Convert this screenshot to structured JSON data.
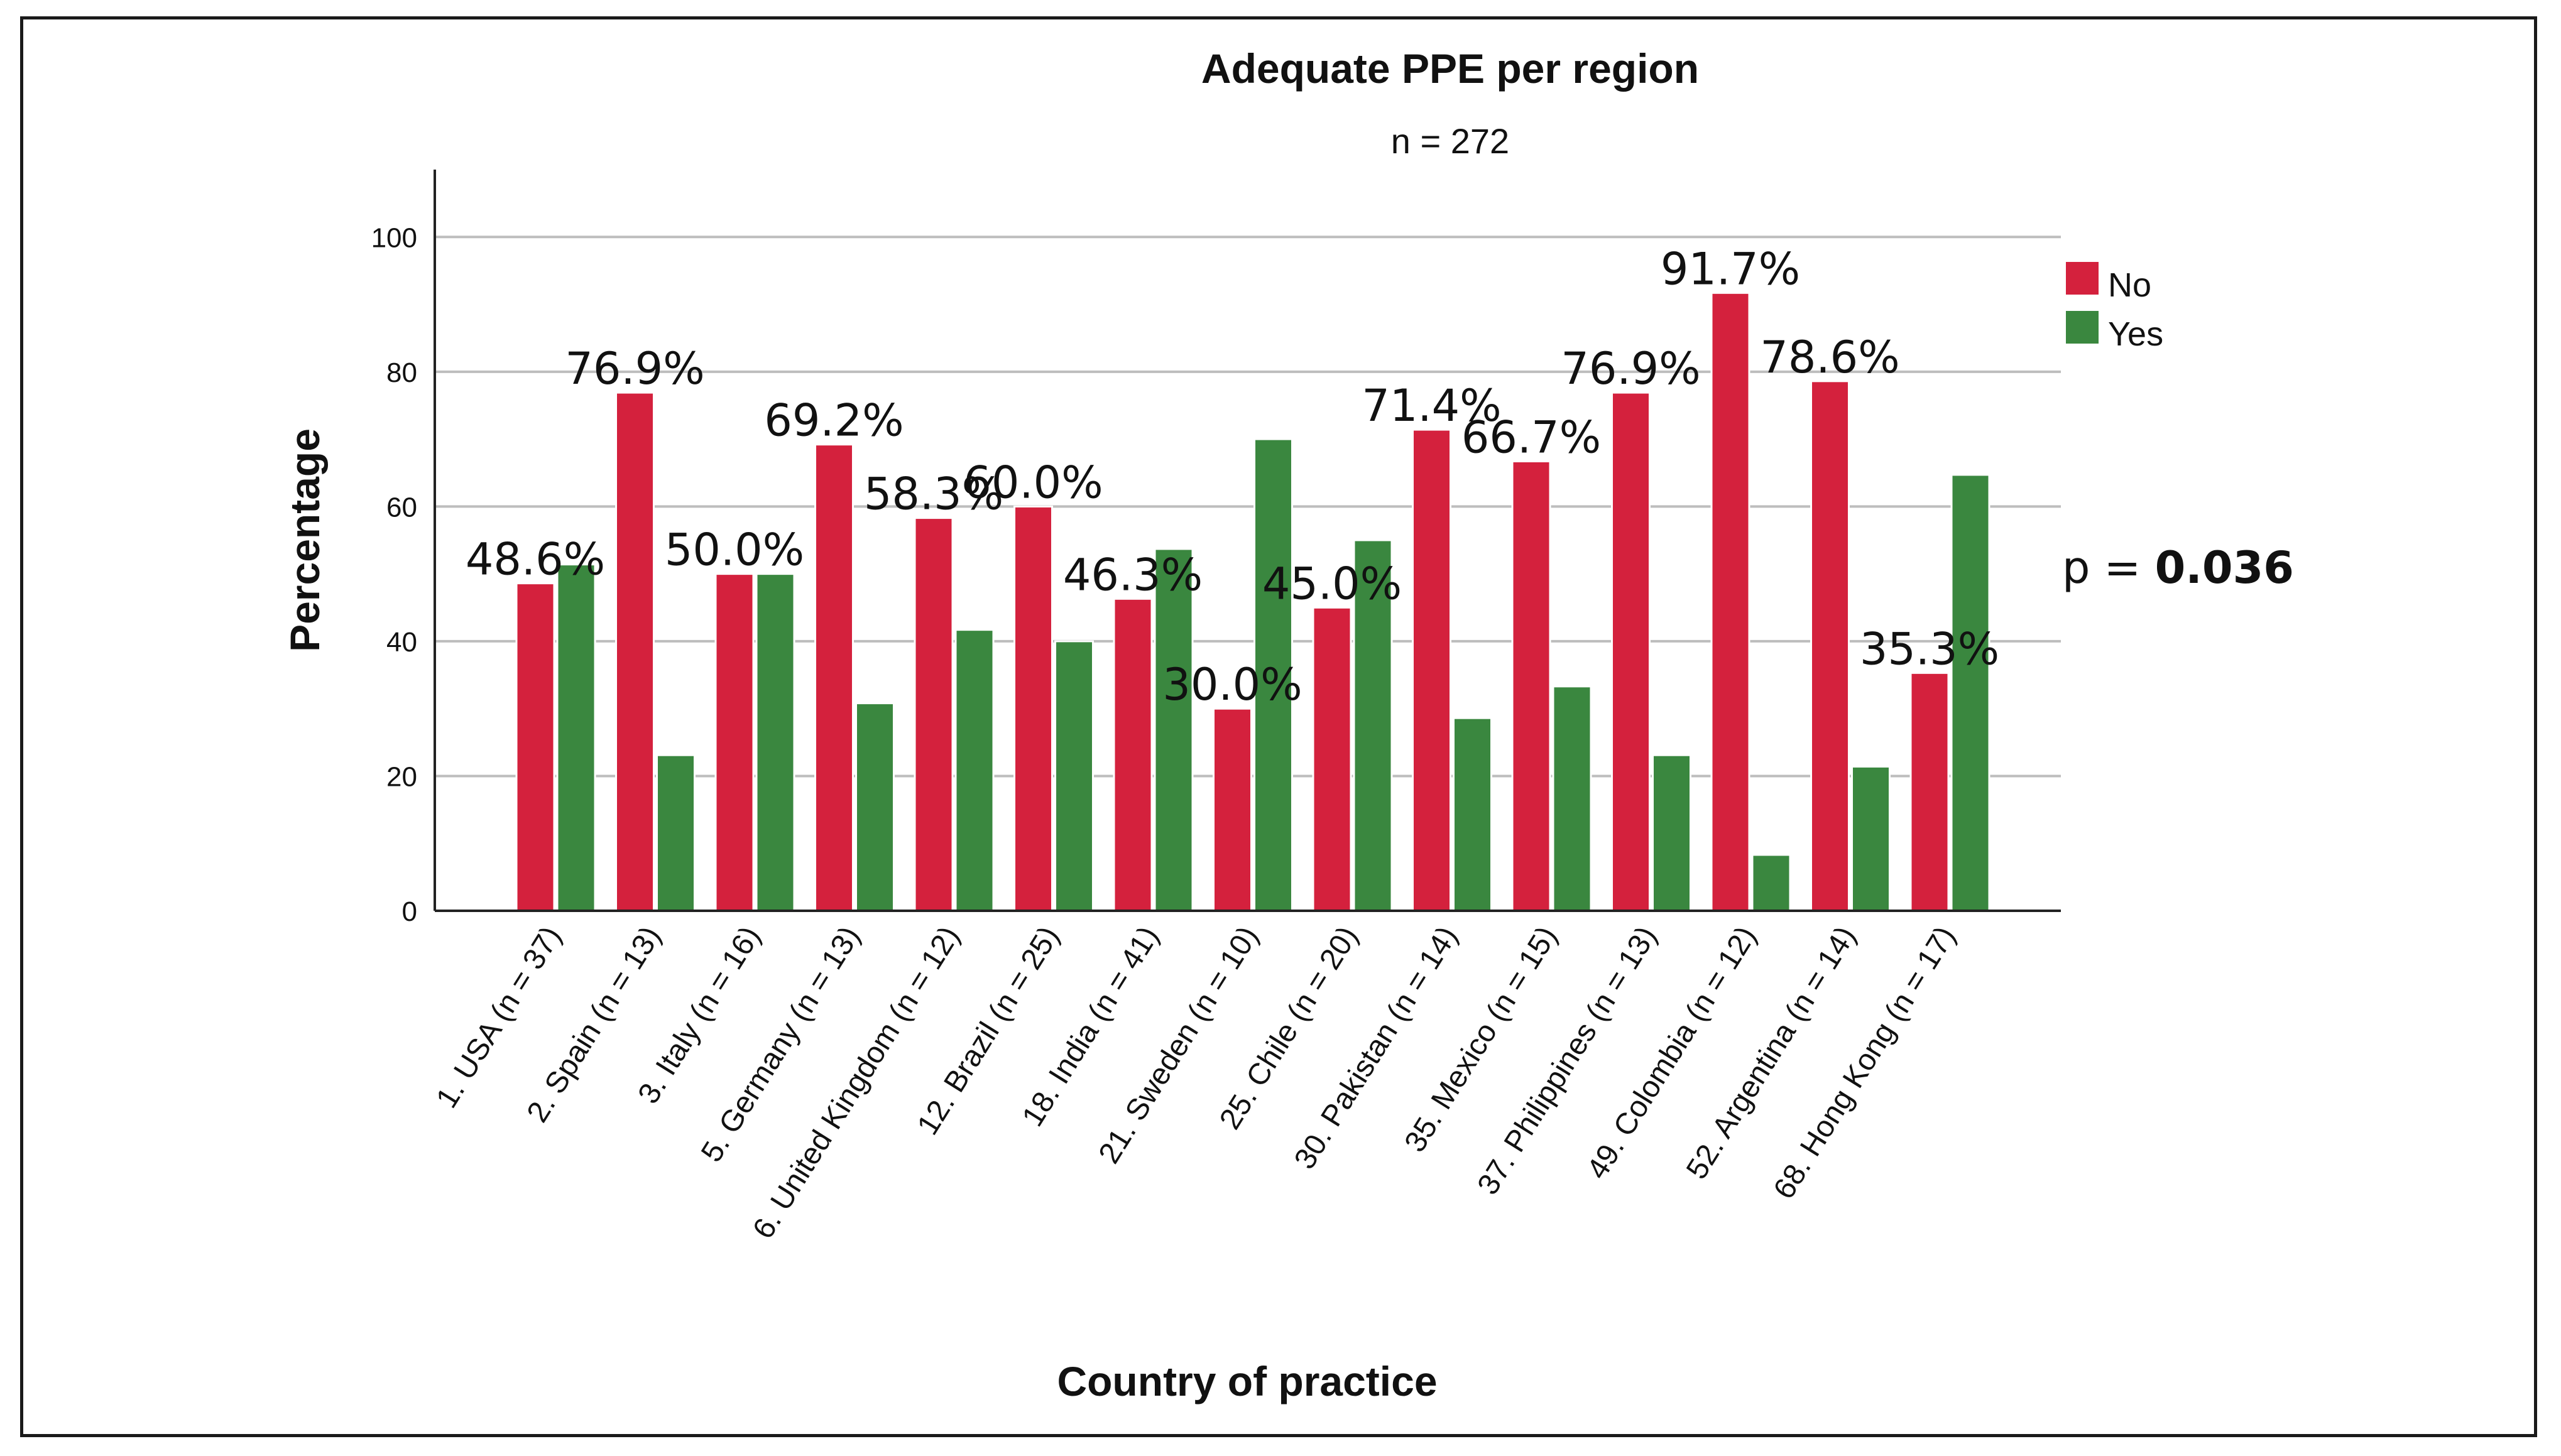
{
  "chart_data": {
    "type": "bar",
    "title": "Adequate PPE per region",
    "subtitle": "n = 272",
    "xlabel": "Country of practice",
    "ylabel": "Percentage",
    "ylim": [
      0,
      110
    ],
    "yticks": [
      0,
      20,
      40,
      60,
      80,
      100
    ],
    "grid": true,
    "legend_position": "top-right",
    "categories": [
      "1. USA (n = 37)",
      "2. Spain (n = 13)",
      "3. Italy (n = 16)",
      "5. Germany (n = 13)",
      "6. United Kingdom (n = 12)",
      "12. Brazil (n = 25)",
      "18. India (n = 41)",
      "21. Sweden (n = 10)",
      "25. Chile (n = 20)",
      "30. Pakistan (n = 14)",
      "35. Mexico (n = 15)",
      "37. Philippines (n = 13)",
      "49. Colombia (n = 12)",
      "52. Argentina (n = 14)",
      "68. Hong Kong (n = 17)"
    ],
    "series": [
      {
        "name": "No",
        "color": "#d4213d",
        "values": [
          48.6,
          76.9,
          50.0,
          69.2,
          58.3,
          60.0,
          46.3,
          30.0,
          45.0,
          71.4,
          66.7,
          76.9,
          91.7,
          78.6,
          35.3
        ]
      },
      {
        "name": "Yes",
        "color": "#3a873f",
        "values": [
          51.4,
          23.1,
          50.0,
          30.8,
          41.7,
          40.0,
          53.7,
          70.0,
          55.0,
          28.6,
          33.3,
          23.1,
          8.3,
          21.4,
          64.7
        ]
      }
    ],
    "data_labels": [
      "48.6%",
      "76.9%",
      "50.0%",
      "69.2%",
      "58.3%",
      "60.0%",
      "46.3%",
      "30.0%",
      "45.0%",
      "71.4%",
      "66.7%",
      "76.9%",
      "91.7%",
      "78.6%",
      "35.3%"
    ],
    "annotation": {
      "prefix": "p = ",
      "value": "0.036"
    }
  }
}
